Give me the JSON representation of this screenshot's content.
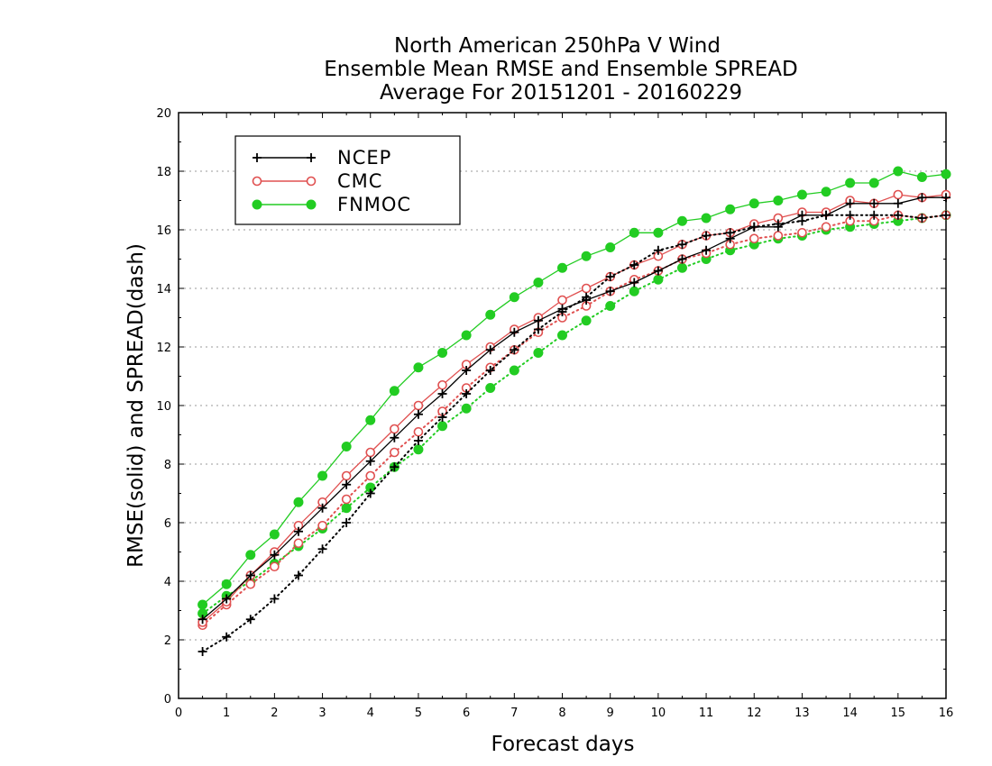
{
  "chart_data": {
    "type": "line",
    "title_lines": [
      "North American 250hPa V Wind",
      "Ensemble Mean RMSE and Ensemble SPREAD",
      "Average For 20151201 - 20160229"
    ],
    "xlabel": "Forecast days",
    "ylabel": "RMSE(solid) and SPREAD(dash)",
    "xlim": [
      0,
      16
    ],
    "ylim": [
      0,
      20
    ],
    "xticks": [
      "0",
      "1",
      "2",
      "3",
      "4",
      "5",
      "6",
      "7",
      "8",
      "9",
      "10",
      "11",
      "12",
      "13",
      "14",
      "15",
      "16"
    ],
    "yticks": [
      "0",
      "2",
      "4",
      "6",
      "8",
      "10",
      "12",
      "14",
      "16",
      "18",
      "20"
    ],
    "grid": "horizontal dotted",
    "legend_position": "top-left",
    "x": [
      0.5,
      1,
      1.5,
      2,
      2.5,
      3,
      3.5,
      4,
      4.5,
      5,
      5.5,
      6,
      6.5,
      7,
      7.5,
      8,
      8.5,
      9,
      9.5,
      10,
      10.5,
      11,
      11.5,
      12,
      12.5,
      13,
      13.5,
      14,
      14.5,
      15,
      15.5,
      16
    ],
    "series": [
      {
        "name": "NCEP",
        "color": "#000000",
        "marker": "plus",
        "rmse": [
          2.7,
          3.4,
          4.2,
          4.9,
          5.7,
          6.5,
          7.3,
          8.1,
          8.9,
          9.7,
          10.4,
          11.2,
          11.9,
          12.5,
          12.9,
          13.3,
          13.6,
          13.9,
          14.2,
          14.6,
          15.0,
          15.3,
          15.7,
          16.1,
          16.1,
          16.5,
          16.5,
          16.9,
          16.9,
          16.9,
          17.1,
          17.1
        ],
        "spread": [
          1.6,
          2.1,
          2.7,
          3.4,
          4.2,
          5.1,
          6.0,
          7.0,
          7.9,
          8.8,
          9.6,
          10.4,
          11.2,
          11.9,
          12.6,
          13.2,
          13.7,
          14.4,
          14.8,
          15.3,
          15.5,
          15.8,
          15.9,
          16.1,
          16.2,
          16.3,
          16.5,
          16.5,
          16.5,
          16.5,
          16.4,
          16.5
        ]
      },
      {
        "name": "CMC",
        "color": "#e05050",
        "marker": "circle",
        "rmse": [
          2.6,
          3.3,
          4.2,
          5.0,
          5.9,
          6.7,
          7.6,
          8.4,
          9.2,
          10.0,
          10.7,
          11.4,
          12.0,
          12.6,
          13.0,
          13.6,
          14.0,
          14.4,
          14.8,
          15.1,
          15.5,
          15.8,
          15.9,
          16.2,
          16.4,
          16.6,
          16.6,
          17.0,
          16.9,
          17.2,
          17.1,
          17.2
        ],
        "spread": [
          2.5,
          3.2,
          3.9,
          4.5,
          5.3,
          5.9,
          6.8,
          7.6,
          8.4,
          9.1,
          9.8,
          10.6,
          11.3,
          11.9,
          12.5,
          13.0,
          13.4,
          13.9,
          14.3,
          14.6,
          15.0,
          15.2,
          15.5,
          15.7,
          15.8,
          15.9,
          16.1,
          16.3,
          16.3,
          16.5,
          16.4,
          16.5
        ]
      },
      {
        "name": "FNMOC",
        "color": "#22cc22",
        "marker": "dot",
        "rmse": [
          3.2,
          3.9,
          4.9,
          5.6,
          6.7,
          7.6,
          8.6,
          9.5,
          10.5,
          11.3,
          11.8,
          12.4,
          13.1,
          13.7,
          14.2,
          14.7,
          15.1,
          15.4,
          15.9,
          15.9,
          16.3,
          16.4,
          16.7,
          16.9,
          17.0,
          17.2,
          17.3,
          17.6,
          17.6,
          18.0,
          17.8,
          17.9
        ],
        "spread": [
          2.9,
          3.5,
          4.0,
          4.6,
          5.2,
          5.8,
          6.5,
          7.2,
          7.9,
          8.5,
          9.3,
          9.9,
          10.6,
          11.2,
          11.8,
          12.4,
          12.9,
          13.4,
          13.9,
          14.3,
          14.7,
          15.0,
          15.3,
          15.5,
          15.7,
          15.8,
          16.0,
          16.1,
          16.2,
          16.3,
          16.4,
          16.5
        ]
      }
    ]
  }
}
